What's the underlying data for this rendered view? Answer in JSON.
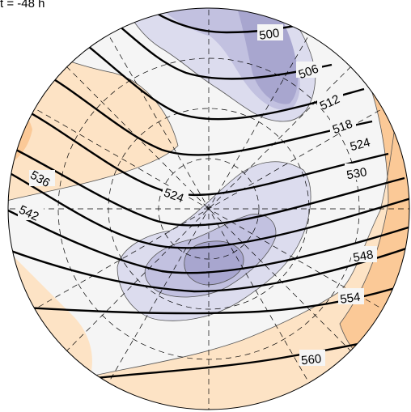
{
  "title": "t = -48 h",
  "colors": {
    "background": "#ffffff",
    "neutral_fill": "#f5f5f5",
    "low_anomaly_1": "#dcdcee",
    "low_anomaly_2": "#c2c1e0",
    "low_anomaly_3": "#a8a6cf",
    "high_anomaly_1": "#fde3c5",
    "high_anomaly_2": "#fbc997",
    "high_anomaly_3": "#f8ad6a",
    "contour_line": "#000000",
    "graticule": "#000000"
  },
  "contours": {
    "units": "dam",
    "labels": [
      "500",
      "506",
      "512",
      "518",
      "524",
      "530",
      "536",
      "542",
      "548",
      "554",
      "560"
    ],
    "interval": 6
  },
  "graticule_style": "dashed"
}
